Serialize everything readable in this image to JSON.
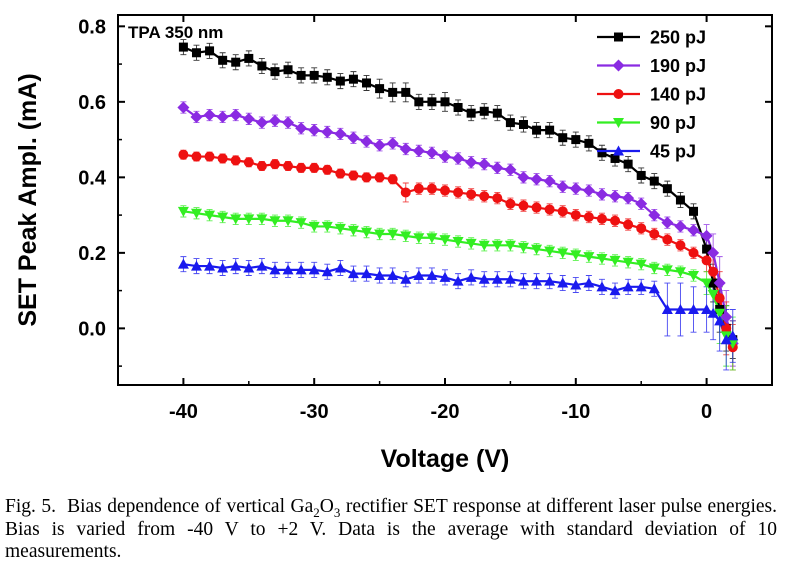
{
  "chart_data": {
    "type": "line",
    "annotation": "TPA 350 nm",
    "xlabel": "Voltage (V)",
    "ylabel": "SET Peak Ampl. (mA)",
    "xlim": [
      -45,
      5
    ],
    "ylim": [
      -0.15,
      0.83
    ],
    "xticks": [
      -40,
      -30,
      -20,
      -10,
      0
    ],
    "xtick_labels": [
      "-40",
      "-30",
      "-20",
      "-10",
      "0"
    ],
    "yticks": [
      0.0,
      0.2,
      0.4,
      0.6,
      0.8
    ],
    "ytick_labels": [
      "0.0",
      "0.2",
      "0.4",
      "0.6",
      "0.8"
    ],
    "grid": false,
    "legend_position": "top-right",
    "x": [
      -40,
      -39,
      -38,
      -37,
      -36,
      -35,
      -34,
      -33,
      -32,
      -31,
      -30,
      -29,
      -28,
      -27,
      -26,
      -25,
      -24,
      -23,
      -22,
      -21,
      -20,
      -19,
      -18,
      -17,
      -16,
      -15,
      -14,
      -13,
      -12,
      -11,
      -10,
      -9,
      -8,
      -7,
      -6,
      -5,
      -4,
      -3,
      -2,
      -1,
      0,
      0.5,
      1,
      1.5,
      2
    ],
    "series": [
      {
        "name": "250 pJ",
        "color": "#000000",
        "marker": "square",
        "values": [
          0.745,
          0.73,
          0.735,
          0.71,
          0.705,
          0.715,
          0.695,
          0.68,
          0.685,
          0.67,
          0.67,
          0.665,
          0.655,
          0.66,
          0.65,
          0.635,
          0.625,
          0.625,
          0.6,
          0.6,
          0.6,
          0.585,
          0.57,
          0.575,
          0.57,
          0.545,
          0.54,
          0.525,
          0.525,
          0.505,
          0.5,
          0.49,
          0.465,
          0.45,
          0.435,
          0.405,
          0.39,
          0.37,
          0.34,
          0.31,
          0.21,
          0.12,
          0.05,
          0.0,
          -0.03
        ],
        "errors": [
          0.02,
          0.02,
          0.02,
          0.02,
          0.02,
          0.02,
          0.02,
          0.02,
          0.02,
          0.02,
          0.02,
          0.02,
          0.02,
          0.02,
          0.02,
          0.025,
          0.025,
          0.025,
          0.02,
          0.02,
          0.025,
          0.02,
          0.02,
          0.02,
          0.02,
          0.02,
          0.02,
          0.02,
          0.02,
          0.02,
          0.02,
          0.02,
          0.02,
          0.02,
          0.02,
          0.02,
          0.02,
          0.02,
          0.02,
          0.02,
          0.03,
          0.05,
          0.06,
          0.06,
          0.05
        ]
      },
      {
        "name": "190 pJ",
        "color": "#8a2be2",
        "marker": "diamond",
        "values": [
          0.585,
          0.56,
          0.565,
          0.56,
          0.565,
          0.555,
          0.545,
          0.55,
          0.545,
          0.53,
          0.525,
          0.52,
          0.515,
          0.505,
          0.495,
          0.485,
          0.49,
          0.475,
          0.47,
          0.465,
          0.455,
          0.45,
          0.44,
          0.435,
          0.425,
          0.42,
          0.4,
          0.395,
          0.39,
          0.375,
          0.37,
          0.365,
          0.355,
          0.35,
          0.345,
          0.33,
          0.3,
          0.28,
          0.27,
          0.26,
          0.245,
          0.2,
          0.12,
          0.03,
          -0.04
        ],
        "errors": [
          0.015,
          0.015,
          0.015,
          0.015,
          0.015,
          0.015,
          0.015,
          0.015,
          0.015,
          0.015,
          0.015,
          0.015,
          0.015,
          0.015,
          0.015,
          0.015,
          0.015,
          0.015,
          0.015,
          0.015,
          0.015,
          0.015,
          0.015,
          0.015,
          0.015,
          0.015,
          0.015,
          0.015,
          0.015,
          0.015,
          0.015,
          0.015,
          0.015,
          0.015,
          0.015,
          0.015,
          0.015,
          0.015,
          0.015,
          0.015,
          0.03,
          0.05,
          0.07,
          0.07,
          0.06
        ]
      },
      {
        "name": "140 pJ",
        "color": "#ee1111",
        "marker": "circle",
        "values": [
          0.46,
          0.455,
          0.455,
          0.45,
          0.445,
          0.44,
          0.43,
          0.435,
          0.43,
          0.425,
          0.425,
          0.42,
          0.41,
          0.405,
          0.4,
          0.4,
          0.395,
          0.36,
          0.37,
          0.37,
          0.365,
          0.36,
          0.355,
          0.35,
          0.345,
          0.33,
          0.325,
          0.32,
          0.315,
          0.31,
          0.3,
          0.295,
          0.29,
          0.285,
          0.275,
          0.265,
          0.25,
          0.235,
          0.22,
          0.2,
          0.18,
          0.15,
          0.08,
          0.0,
          -0.05
        ],
        "errors": [
          0.012,
          0.012,
          0.012,
          0.012,
          0.012,
          0.012,
          0.012,
          0.012,
          0.012,
          0.012,
          0.012,
          0.012,
          0.012,
          0.012,
          0.012,
          0.012,
          0.012,
          0.025,
          0.015,
          0.015,
          0.015,
          0.015,
          0.015,
          0.015,
          0.015,
          0.015,
          0.015,
          0.015,
          0.015,
          0.015,
          0.015,
          0.015,
          0.015,
          0.015,
          0.015,
          0.015,
          0.015,
          0.015,
          0.015,
          0.015,
          0.03,
          0.05,
          0.07,
          0.07,
          0.06
        ]
      },
      {
        "name": "90 pJ",
        "color": "#33ee22",
        "marker": "triangle-down",
        "values": [
          0.31,
          0.305,
          0.3,
          0.295,
          0.29,
          0.29,
          0.29,
          0.285,
          0.285,
          0.28,
          0.27,
          0.27,
          0.265,
          0.26,
          0.255,
          0.25,
          0.25,
          0.245,
          0.24,
          0.24,
          0.235,
          0.23,
          0.225,
          0.22,
          0.22,
          0.22,
          0.215,
          0.21,
          0.205,
          0.2,
          0.195,
          0.19,
          0.185,
          0.18,
          0.175,
          0.17,
          0.16,
          0.155,
          0.15,
          0.14,
          0.12,
          0.09,
          0.04,
          -0.02,
          -0.04
        ],
        "errors": [
          0.015,
          0.015,
          0.015,
          0.015,
          0.015,
          0.015,
          0.015,
          0.015,
          0.015,
          0.015,
          0.015,
          0.015,
          0.015,
          0.015,
          0.015,
          0.015,
          0.015,
          0.015,
          0.015,
          0.015,
          0.015,
          0.015,
          0.015,
          0.015,
          0.015,
          0.015,
          0.015,
          0.015,
          0.015,
          0.015,
          0.015,
          0.015,
          0.015,
          0.015,
          0.015,
          0.015,
          0.015,
          0.015,
          0.015,
          0.015,
          0.03,
          0.06,
          0.08,
          0.08,
          0.07
        ]
      },
      {
        "name": "45 pJ",
        "color": "#1a1aee",
        "marker": "triangle-up",
        "values": [
          0.17,
          0.165,
          0.165,
          0.16,
          0.165,
          0.16,
          0.165,
          0.155,
          0.155,
          0.155,
          0.155,
          0.15,
          0.16,
          0.145,
          0.145,
          0.14,
          0.14,
          0.13,
          0.14,
          0.14,
          0.135,
          0.125,
          0.135,
          0.13,
          0.13,
          0.13,
          0.125,
          0.125,
          0.125,
          0.12,
          0.115,
          0.12,
          0.11,
          0.1,
          0.11,
          0.11,
          0.105,
          0.05,
          0.05,
          0.05,
          0.05,
          0.04,
          0.02,
          -0.03,
          -0.02
        ],
        "errors": [
          0.02,
          0.02,
          0.02,
          0.02,
          0.02,
          0.02,
          0.02,
          0.02,
          0.02,
          0.02,
          0.02,
          0.02,
          0.02,
          0.02,
          0.02,
          0.02,
          0.02,
          0.02,
          0.02,
          0.02,
          0.02,
          0.02,
          0.02,
          0.02,
          0.02,
          0.02,
          0.02,
          0.02,
          0.02,
          0.02,
          0.02,
          0.02,
          0.02,
          0.02,
          0.02,
          0.02,
          0.02,
          0.07,
          0.07,
          0.06,
          0.06,
          0.07,
          0.08,
          0.08,
          0.07
        ]
      }
    ]
  },
  "caption": {
    "fig_label": "Fig. 5.",
    "part1": "Bias dependence of vertical Ga",
    "sub1": "2",
    "part2": "O",
    "sub2": "3",
    "part3": " rectifier SET response at different laser pulse energies. Bias is varied from -40 V to +2 V. Data is the average with standard deviation of 10 measurements."
  }
}
